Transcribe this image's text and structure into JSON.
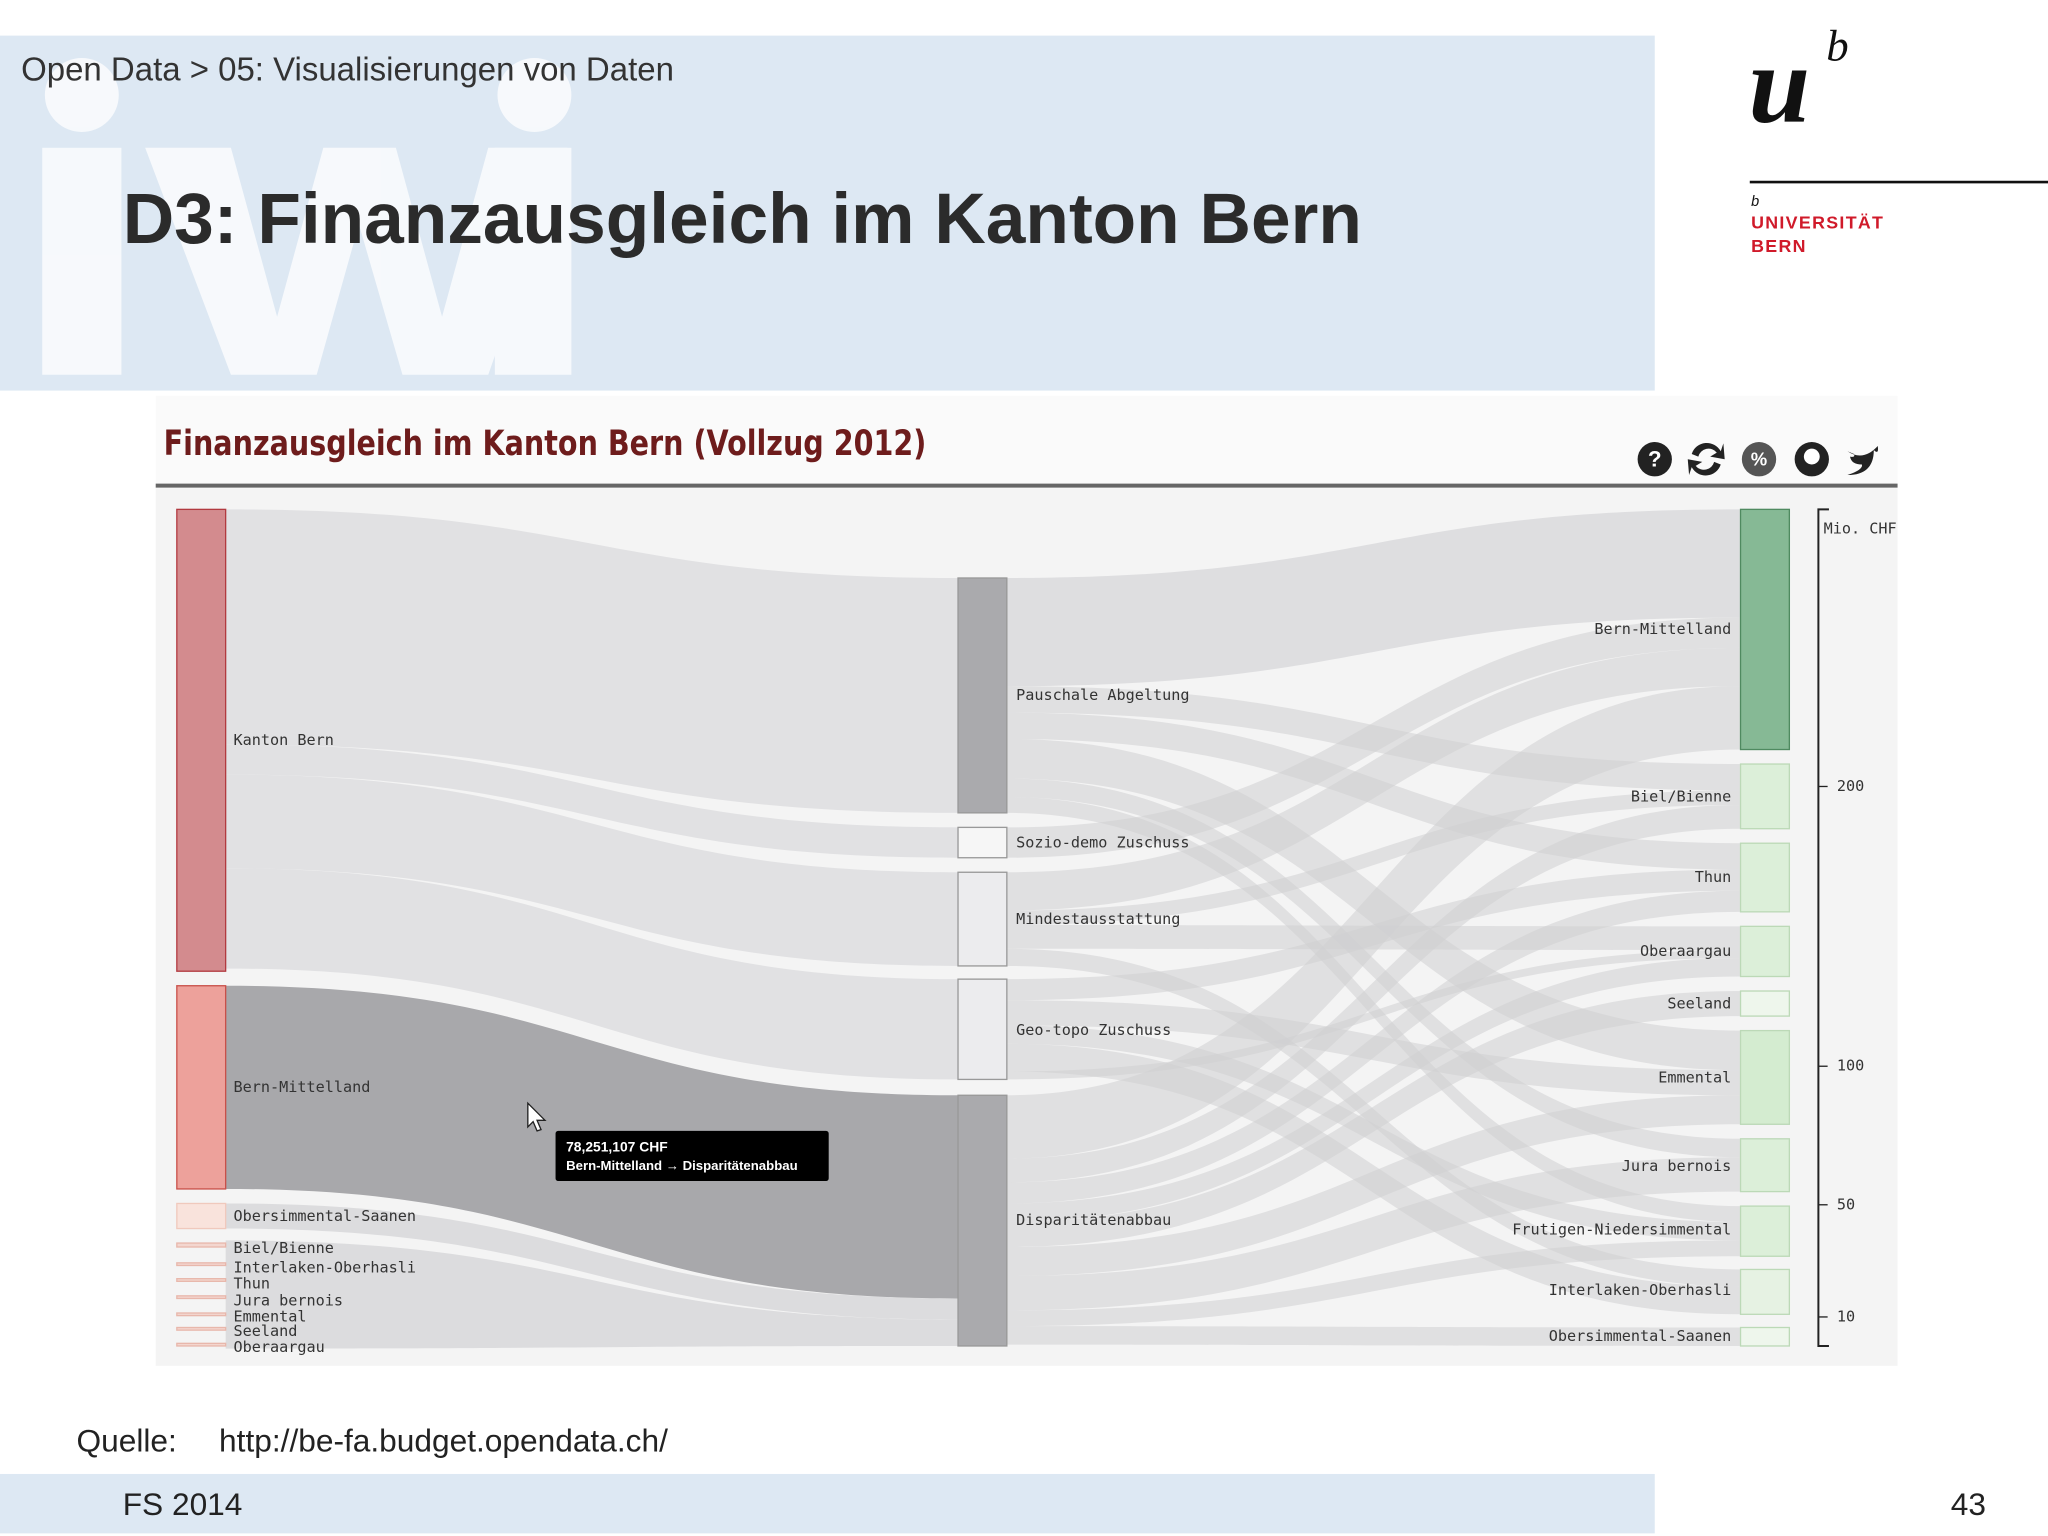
{
  "header": {
    "breadcrumb": "Open Data > 05: Visualisierungen von Daten",
    "title": "D3: Finanzausgleich im Kanton Bern"
  },
  "logo": {
    "letter": "u",
    "superscript": "b",
    "small": "b",
    "lines": [
      "UNIVERSITÄT",
      "BERN"
    ]
  },
  "figure": {
    "title": "Finanzausgleich im Kanton Bern (Vollzug 2012)",
    "icon_labels": [
      "?",
      "%"
    ],
    "left_nodes": [
      "Kanton Bern",
      "Bern-Mittelland",
      "Obersimmental-Saanen",
      "Biel/Bienne",
      "Interlaken-Oberhasli",
      "Thun",
      "Jura bernois",
      "Emmental",
      "Seeland",
      "Oberaargau"
    ],
    "middle_nodes": [
      "Pauschale Abgeltung",
      "Sozio-demo Zuschuss",
      "Mindestausstattung",
      "Geo-topo Zuschuss",
      "Disparitätenabbau"
    ],
    "right_nodes": [
      "Bern-Mittelland",
      "Biel/Bienne",
      "Thun",
      "Oberaargau",
      "Seeland",
      "Emmental",
      "Jura bernois",
      "Frutigen-Niedersimmental",
      "Interlaken-Oberhasli",
      "Obersimmental-Saanen"
    ],
    "scale_unit": "Mio. CHF",
    "scale_ticks": [
      200,
      100,
      50,
      10
    ],
    "tooltip": {
      "amount": "78,251,107 CHF",
      "route": "Bern-Mittelland → Disparitätenabbau"
    }
  },
  "footer": {
    "source_label": "Quelle:",
    "source_url": "http://be-fa.budget.opendata.ch/",
    "course": "FS 2014",
    "page": 43
  }
}
